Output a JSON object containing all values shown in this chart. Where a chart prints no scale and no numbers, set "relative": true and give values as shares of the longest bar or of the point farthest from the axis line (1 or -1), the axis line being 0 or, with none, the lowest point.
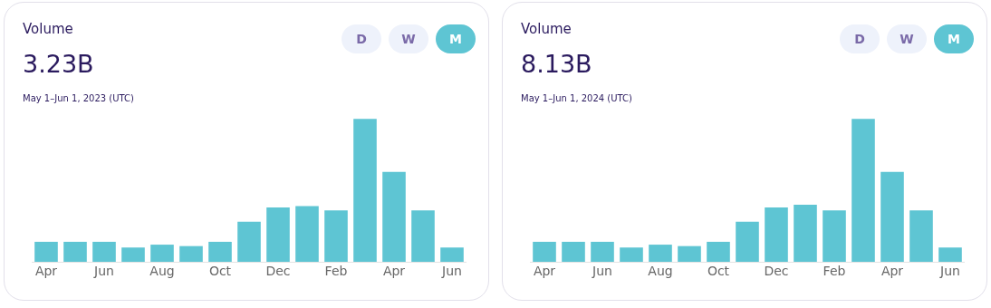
{
  "chart_data": [
    {
      "type": "bar",
      "title": "Volume",
      "subtitle": "3.23B",
      "annotations": [
        "May 1–Jun 1, 2023 (UTC)",
        "D",
        "W",
        "M"
      ],
      "relative": true,
      "categories": [
        "Apr",
        null,
        "Jun",
        null,
        "Aug",
        null,
        "Oct",
        null,
        "Dec",
        null,
        "Feb",
        null,
        "Apr",
        null,
        "Jun"
      ],
      "color": "#5ec5d3",
      "values": [
        0.14,
        0.14,
        0.14,
        0.1,
        0.12,
        0.11,
        0.14,
        0.28,
        0.38,
        0.39,
        0.36,
        1,
        0.63,
        0.36,
        0.1
      ]
    },
    {
      "type": "bar",
      "title": "Volume",
      "subtitle": "8.13B",
      "annotations": [
        "May 1–Jun 1, 2024 (UTC)",
        "D",
        "W",
        "M"
      ],
      "relative": true,
      "categories": [
        "Apr",
        null,
        "Jun",
        null,
        "Aug",
        null,
        "Oct",
        null,
        "Dec",
        null,
        "Feb",
        null,
        "Apr",
        null,
        "Jun"
      ],
      "color": "#5ec5d3",
      "values": [
        0.14,
        0.14,
        0.14,
        0.1,
        0.12,
        0.11,
        0.14,
        0.28,
        0.38,
        0.4,
        0.36,
        1,
        0.63,
        0.36,
        0.1
      ]
    }
  ]
}
